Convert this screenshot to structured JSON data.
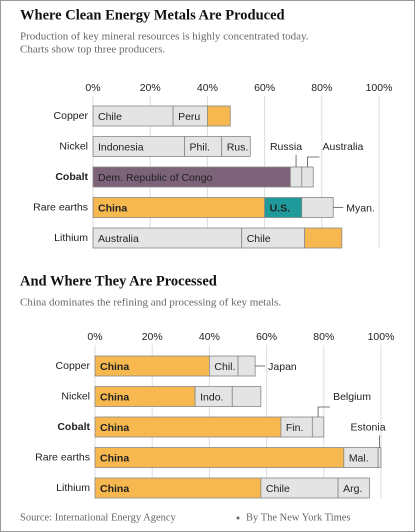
{
  "chart_data": [
    {
      "type": "bar",
      "orientation": "horizontal",
      "stacked": true,
      "title": "Where Clean Energy Metals Are Produced",
      "subtitle": [
        "Production of key mineral resources is highly concentrated today.",
        "Charts show top three producers."
      ],
      "xlim": [
        0,
        100
      ],
      "xticks": [
        {
          "value": 0,
          "label": "0%"
        },
        {
          "value": 20,
          "label": "20%"
        },
        {
          "value": 40,
          "label": "40%"
        },
        {
          "value": 60,
          "label": "60%"
        },
        {
          "value": 80,
          "label": "80%"
        },
        {
          "value": 100,
          "label": "100%"
        }
      ],
      "grid": true,
      "categories": [
        "Copper",
        "Nickel",
        "Cobalt",
        "Rare earths",
        "Lithium"
      ],
      "highlight": "Cobalt",
      "segments": [
        [
          {
            "label": "Chile",
            "value": 28,
            "color": "#e4e4e4"
          },
          {
            "label": "Peru",
            "value": 12,
            "color": "#e4e4e4"
          },
          {
            "label": null,
            "value": 8,
            "color": "#f7b94f"
          }
        ],
        [
          {
            "label": "Indonesia",
            "value": 32,
            "color": "#e4e4e4"
          },
          {
            "label": "Phil.",
            "value": 13,
            "color": "#e4e4e4"
          },
          {
            "label": "Rus.",
            "value": 10,
            "color": "#e4e4e4"
          }
        ],
        [
          {
            "label": "Dem. Republic of Congo",
            "value": 69,
            "color": "#7d6379"
          },
          {
            "label": "Russia",
            "value": 4,
            "color": "#e4e4e4",
            "callout": "above-left"
          },
          {
            "label": "Australia",
            "value": 4,
            "color": "#e4e4e4",
            "callout": "above-right"
          }
        ],
        [
          {
            "label": "China",
            "value": 60,
            "color": "#f7b94f",
            "bold": true
          },
          {
            "label": "U.S.",
            "value": 13,
            "color": "#1e9a9b",
            "bold": true
          },
          {
            "label": "Myan.",
            "value": 11,
            "color": "#e4e4e4",
            "callout": "right"
          }
        ],
        [
          {
            "label": "Australia",
            "value": 52,
            "color": "#e4e4e4"
          },
          {
            "label": "Chile",
            "value": 22,
            "color": "#e4e4e4"
          },
          {
            "label": null,
            "value": 13,
            "color": "#f7b94f"
          }
        ]
      ]
    },
    {
      "type": "bar",
      "orientation": "horizontal",
      "stacked": true,
      "title": "And Where They Are Processed",
      "subtitle": [
        "China dominates the refining and processing of key metals."
      ],
      "xlim": [
        0,
        100
      ],
      "xticks": [
        {
          "value": 0,
          "label": "0%"
        },
        {
          "value": 20,
          "label": "20%"
        },
        {
          "value": 40,
          "label": "40%"
        },
        {
          "value": 60,
          "label": "60%"
        },
        {
          "value": 80,
          "label": "80%"
        },
        {
          "value": 100,
          "label": "100%"
        }
      ],
      "grid": true,
      "categories": [
        "Copper",
        "Nickel",
        "Cobalt",
        "Rare earths",
        "Lithium"
      ],
      "highlight": "Cobalt",
      "segments": [
        [
          {
            "label": "China",
            "value": 40,
            "color": "#f7b94f",
            "bold": true
          },
          {
            "label": "Chil.",
            "value": 10,
            "color": "#e4e4e4"
          },
          {
            "label": "Japan",
            "value": 6,
            "color": "#e4e4e4",
            "callout": "right"
          }
        ],
        [
          {
            "label": "China",
            "value": 35,
            "color": "#f7b94f",
            "bold": true
          },
          {
            "label": "Indo.",
            "value": 13,
            "color": "#e4e4e4"
          },
          {
            "label": null,
            "value": 10,
            "color": "#e4e4e4"
          }
        ],
        [
          {
            "label": "China",
            "value": 65,
            "color": "#f7b94f",
            "bold": true
          },
          {
            "label": "Fin.",
            "value": 11,
            "color": "#e4e4e4"
          },
          {
            "label": "Belgium",
            "value": 4,
            "color": "#e4e4e4",
            "callout": "above-right"
          }
        ],
        [
          {
            "label": "China",
            "value": 87,
            "color": "#f7b94f",
            "bold": true
          },
          {
            "label": "Mal.",
            "value": 12,
            "color": "#e4e4e4"
          },
          {
            "label": "Estonia",
            "value": 1,
            "color": "#e4e4e4",
            "callout": "above-left"
          }
        ],
        [
          {
            "label": "China",
            "value": 58,
            "color": "#f7b94f",
            "bold": true
          },
          {
            "label": "Chile",
            "value": 27,
            "color": "#e4e4e4"
          },
          {
            "label": "Arg.",
            "value": 11,
            "color": "#e4e4e4"
          }
        ]
      ]
    }
  ],
  "source": "Source: International Energy Agency",
  "credit": "By The New York Times"
}
